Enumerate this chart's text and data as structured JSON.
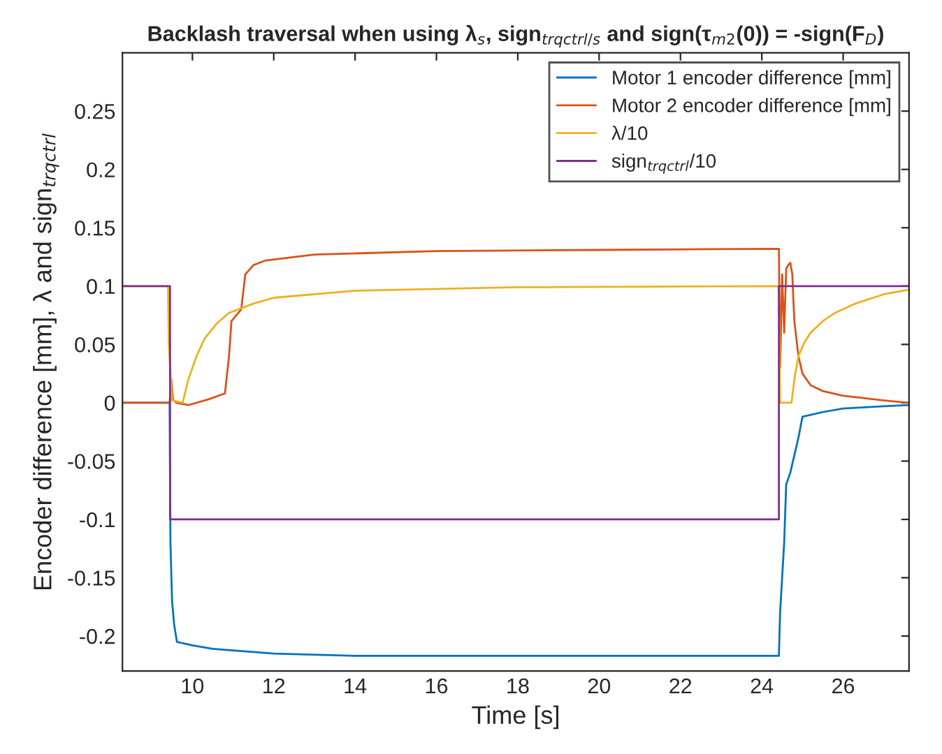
{
  "chart_data": {
    "type": "line",
    "title": "Backlash traversal when using λ$_{s}$, sign$_{trqctrl/s}$ and sign(τ$_{m2}$(0)) = -sign(F$_{D}$)",
    "xlabel": "Time [s]",
    "ylabel": "Encoder difference [mm], λ and sign$_{trqctrl}$",
    "xlim": [
      8.28,
      27.62
    ],
    "xticks": [
      10,
      12,
      14,
      16,
      18,
      20,
      22,
      24,
      26
    ],
    "ylim": [
      -0.23,
      0.3
    ],
    "yticks": [
      -0.2,
      -0.15,
      -0.1,
      -0.05,
      0,
      0.05,
      0.1,
      0.15,
      0.2,
      0.25
    ],
    "grid": false,
    "legend": "top right",
    "line_style": "solid",
    "marker": "none",
    "series": [
      {
        "name": "Motor 1 encoder difference [mm]",
        "color": "#0072bd",
        "x": [
          8.28,
          9.44,
          9.46,
          9.5,
          9.55,
          9.62,
          10.0,
          10.5,
          12,
          14,
          18,
          24.42,
          24.45,
          24.5,
          24.55,
          24.6,
          24.7,
          24.8,
          24.9,
          25.0,
          25.5,
          26,
          27,
          27.62
        ],
        "values": [
          0,
          0,
          -0.12,
          -0.17,
          -0.19,
          -0.205,
          -0.208,
          -0.211,
          -0.215,
          -0.217,
          -0.217,
          -0.217,
          -0.18,
          -0.15,
          -0.12,
          -0.07,
          -0.06,
          -0.045,
          -0.03,
          -0.012,
          -0.008,
          -0.005,
          -0.003,
          -0.002
        ]
      },
      {
        "name": "Motor 2 encoder difference [mm]",
        "color": "#d95319",
        "x": [
          8.28,
          9.44,
          9.48,
          9.52,
          9.6,
          9.9,
          10.4,
          10.8,
          10.9,
          10.96,
          11.2,
          11.3,
          11.5,
          11.8,
          13,
          16,
          20,
          24.42,
          24.45,
          24.5,
          24.55,
          24.6,
          24.65,
          24.7,
          24.75,
          24.8,
          24.9,
          25.0,
          25.2,
          25.5,
          26,
          26.5,
          27,
          27.62
        ],
        "values": [
          0,
          0,
          0.02,
          0.003,
          0,
          -0.002,
          0.003,
          0.008,
          0.04,
          0.07,
          0.08,
          0.11,
          0.118,
          0.122,
          0.127,
          0.13,
          0.131,
          0.132,
          0.03,
          0.11,
          0.06,
          0.115,
          0.118,
          0.12,
          0.11,
          0.07,
          0.04,
          0.025,
          0.015,
          0.01,
          0.006,
          0.004,
          0.002,
          0
        ]
      },
      {
        "name": "λ/10",
        "color": "#edb120",
        "x": [
          8.28,
          9.4,
          9.42,
          9.5,
          9.76,
          9.9,
          10.1,
          10.3,
          10.6,
          10.9,
          11.5,
          12,
          14,
          18,
          24.4,
          24.42,
          24.45,
          24.73,
          24.8,
          24.9,
          25.05,
          25.2,
          25.5,
          25.8,
          26.3,
          27,
          27.62
        ],
        "values": [
          0.1,
          0.1,
          0.05,
          0.002,
          0,
          0.02,
          0.04,
          0.055,
          0.068,
          0.077,
          0.085,
          0.09,
          0.096,
          0.099,
          0.1,
          0.095,
          0,
          0,
          0.02,
          0.04,
          0.052,
          0.06,
          0.07,
          0.077,
          0.085,
          0.093,
          0.097
        ]
      },
      {
        "name": "sign$_{trqctrl}$/10",
        "color": "#7e2f8e",
        "x": [
          8.28,
          9.45,
          9.45,
          24.42,
          24.42,
          27.62
        ],
        "values": [
          0.1,
          0.1,
          -0.1,
          -0.1,
          0.1,
          0.1
        ]
      }
    ]
  }
}
